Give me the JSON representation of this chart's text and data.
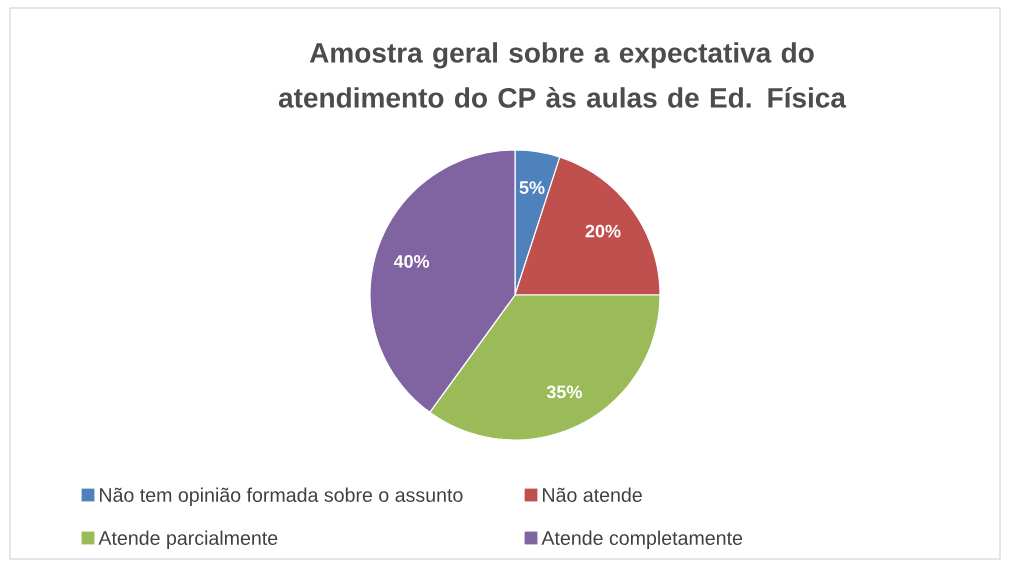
{
  "chart_data": {
    "type": "pie",
    "title": "Amostra geral sobre a expectativa do atendimento do CP às aulas de Ed. Física",
    "categories": [
      "Não tem opinião formada sobre o assunto",
      "Não atende",
      "Atende parcialmente",
      "Atende completamente"
    ],
    "values": [
      5,
      20,
      35,
      40
    ],
    "colors": [
      "#4f81bd",
      "#c0504d",
      "#9bbb59",
      "#8064a2"
    ],
    "value_labels": [
      "5%",
      "20%",
      "35%",
      "40%"
    ],
    "legend": "bottom"
  }
}
